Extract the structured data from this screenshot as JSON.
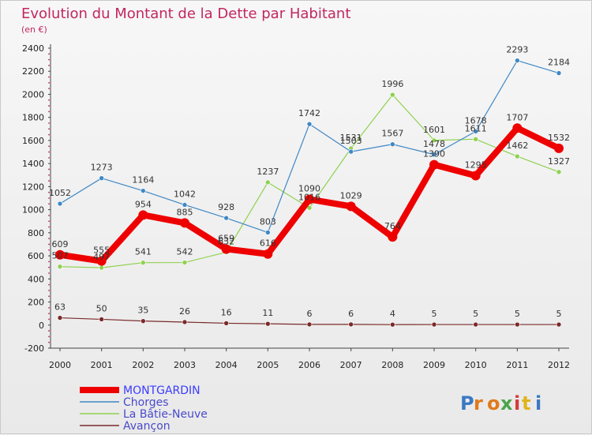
{
  "chart_data": {
    "type": "line",
    "title": "Evolution du Montant de la Dette par Habitant",
    "subtitle": "(en €)",
    "categories": [
      "2000",
      "2001",
      "2002",
      "2003",
      "2004",
      "2005",
      "2006",
      "2007",
      "2008",
      "2009",
      "2010",
      "2011",
      "2012"
    ],
    "ylim": [
      -200,
      2400
    ],
    "yticks": [
      -200,
      0,
      200,
      400,
      600,
      800,
      1000,
      1200,
      1400,
      1600,
      1800,
      2000,
      2200,
      2400
    ],
    "grid": false,
    "legend_position": "bottom-left",
    "series": [
      {
        "name": "MONTGARDIN",
        "color": "#ee0000",
        "values": [
          609,
          555,
          954,
          885,
          659,
          616,
          1090,
          1029,
          764,
          1390,
          1295,
          1707,
          1532
        ]
      },
      {
        "name": "Chorges",
        "color": "#3f88c5",
        "values": [
          1052,
          1273,
          1164,
          1042,
          928,
          803,
          1742,
          1503,
          1567,
          1478,
          1678,
          2293,
          2184
        ]
      },
      {
        "name": "La Bâtie-Neuve",
        "color": "#8fd14f",
        "values": [
          507,
          497,
          541,
          542,
          632,
          1237,
          1016,
          1531,
          1996,
          1601,
          1611,
          1462,
          1327
        ]
      },
      {
        "name": "Avançon",
        "color": "#7a2a2a",
        "values": [
          63,
          50,
          35,
          26,
          16,
          11,
          6,
          6,
          4,
          5,
          5,
          5,
          5
        ]
      }
    ]
  },
  "watermark": "Proxiti"
}
